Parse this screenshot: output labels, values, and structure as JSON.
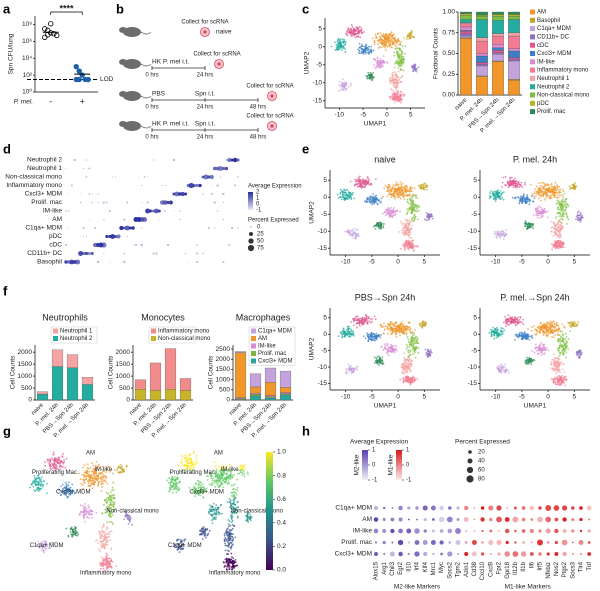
{
  "panel_labels": [
    "a",
    "b",
    "c",
    "d",
    "e",
    "f",
    "g",
    "h"
  ],
  "diagram": {
    "rows": [
      {
        "label": "naive",
        "collect": "Collect for scRNA"
      },
      {
        "treatment": "HK P. mel i.t.",
        "collect": "Collect for scRNA",
        "times": [
          "0 hrs",
          "24 hrs"
        ]
      },
      {
        "treatment": "PBS",
        "challenge": "Spn i.t.",
        "collect": "Collect for scRNA",
        "times": [
          "0 hrs",
          "24 hrs",
          "48 hrs"
        ]
      },
      {
        "treatment": "HK P. mel i.t.",
        "challenge": "Spn i.t.",
        "collect": "Collect for scRNA",
        "times": [
          "0 hrs",
          "24 hrs",
          "48 hrs"
        ]
      }
    ]
  },
  "chart_data": [
    {
      "type": "scatter",
      "ylabel": "Spn CFU/lung",
      "xlabel": "P. mel.",
      "categories": [
        "-",
        "+"
      ],
      "log_scale": true,
      "ylim": [
        1,
        1000000000
      ],
      "yticks": [
        {
          "value": 1,
          "label": "10⁰"
        },
        {
          "value": 100,
          "label": "10²"
        },
        {
          "value": 10000,
          "label": "10⁴"
        },
        {
          "value": 1000000,
          "label": "10⁶"
        },
        {
          "value": 100000000,
          "label": "10⁸"
        }
      ],
      "series": [
        {
          "color": "#000000",
          "values": [
            30000000,
            20000000,
            10000000,
            8000000,
            5000000,
            3000000,
            6000000,
            120000000
          ],
          "mean": 12000000
        },
        {
          "color": "#1f5fa8",
          "values": [
            1000,
            300,
            100,
            30,
            30,
            30,
            30
          ],
          "mean": 130
        }
      ],
      "reference_line": {
        "value": 30,
        "label": "LOD"
      },
      "annotation": "****"
    },
    {
      "type": "umap",
      "palette": "clusters",
      "xlabel": "UMAP1",
      "ylabel": "UMAP2",
      "xlim": [
        -13,
        8
      ],
      "ylim": [
        -17,
        8
      ],
      "xticks": [
        -10,
        -5,
        0,
        5
      ],
      "yticks": [
        -15,
        -10,
        -5,
        0,
        5
      ]
    },
    {
      "type": "stacked_bar",
      "ylabel": "Fractional Counts",
      "legend": "right",
      "categories": [
        "naive",
        "P. mel. 24h",
        "PBS→Spn 24h",
        "P. mel.→Spn 24h"
      ],
      "ylim": [
        0,
        1
      ],
      "yticks": [
        {
          "value": 0,
          "label": "0.00"
        },
        0.25,
        {
          "value": 0.5,
          "label": "0.50"
        },
        0.75,
        {
          "value": 1,
          "label": "1.00"
        }
      ],
      "series": [
        {
          "name": "AM",
          "color": "#f0962a",
          "values": [
            0.68,
            0.22,
            0.4,
            0.18
          ]
        },
        {
          "name": "Basophil",
          "color": "#c9a227",
          "values": [
            0.01,
            0.01,
            0.01,
            0.01
          ]
        },
        {
          "name": "C1qa+ MDM",
          "color": "#c4a3dd",
          "values": [
            0.02,
            0.12,
            0.08,
            0.22
          ]
        },
        {
          "name": "CD11b+ DC",
          "color": "#8e6fc2",
          "values": [
            0.03,
            0.02,
            0.02,
            0.02
          ]
        },
        {
          "name": "cDC",
          "color": "#e0568f",
          "values": [
            0.03,
            0.02,
            0.03,
            0.02
          ]
        },
        {
          "name": "Cxcl3+ MDM",
          "color": "#3c7fc4",
          "values": [
            0.01,
            0.08,
            0.03,
            0.08
          ]
        },
        {
          "name": "IM-like",
          "color": "#d98ad3",
          "values": [
            0.04,
            0.03,
            0.04,
            0.03
          ]
        },
        {
          "name": "Inflammatory mono",
          "color": "#f27d93",
          "values": [
            0.04,
            0.15,
            0.1,
            0.15
          ]
        },
        {
          "name": "Neutrophil 1",
          "color": "#f5a3a3",
          "values": [
            0.01,
            0.04,
            0.03,
            0.04
          ]
        },
        {
          "name": "Neutrophil 2",
          "color": "#22ada0",
          "values": [
            0.04,
            0.22,
            0.16,
            0.16
          ]
        },
        {
          "name": "Non-classical mono",
          "color": "#7fbf3f",
          "values": [
            0.05,
            0.04,
            0.05,
            0.04
          ]
        },
        {
          "name": "pDC",
          "color": "#b5b52a",
          "values": [
            0.02,
            0.01,
            0.02,
            0.02
          ]
        },
        {
          "name": "Prolif. mac",
          "color": "#2e8b57",
          "values": [
            0.02,
            0.04,
            0.03,
            0.03
          ]
        }
      ]
    },
    {
      "type": "dotplot",
      "rows": [
        "Neutrophil 2",
        "Neutrophil 1",
        "Non-classical mono",
        "Inflammatory mono",
        "Cxcl3+ MDM",
        "Prolif. mac",
        "IM-like",
        "AM",
        "C1qa+ MDM",
        "pDC",
        "cDC",
        "CD11b+ DC",
        "Basophil"
      ],
      "legend": {
        "color_title": "Average Expression",
        "color_lim": [
          -1,
          2
        ],
        "color_ticks": [
          2,
          1,
          0,
          -1
        ],
        "size_title": "Percent Expressed",
        "size_ticks": [
          0,
          25,
          50,
          75
        ]
      }
    },
    {
      "type": "umap",
      "palette": "clusters",
      "title": "naive",
      "ylabel": "UMAP2",
      "xlim": [
        -13,
        8
      ],
      "ylim": [
        -17,
        8
      ],
      "xticks": [
        -10,
        -5,
        0,
        5
      ],
      "yticks": [
        -15,
        -10,
        -5,
        0,
        5
      ]
    },
    {
      "type": "umap",
      "palette": "clusters",
      "title": "P. mel. 24h",
      "xlim": [
        -13,
        8
      ],
      "ylim": [
        -17,
        8
      ],
      "xticks": [
        -10,
        -5,
        0,
        5
      ],
      "yticks": [
        -15,
        -10,
        -5,
        0,
        5
      ]
    },
    {
      "type": "umap",
      "palette": "clusters",
      "title": "PBS→Spn 24h",
      "xlabel": "UMAP1",
      "ylabel": "UMAP2",
      "xlim": [
        -13,
        8
      ],
      "ylim": [
        -17,
        8
      ],
      "xticks": [
        -10,
        -5,
        0,
        5
      ],
      "yticks": [
        -15,
        -10,
        -5,
        0,
        5
      ]
    },
    {
      "type": "umap",
      "palette": "clusters",
      "title": "P. mel.→Spn 24h",
      "xlabel": "UMAP1",
      "xlim": [
        -13,
        8
      ],
      "ylim": [
        -17,
        8
      ],
      "xticks": [
        -10,
        -5,
        0,
        5
      ],
      "yticks": [
        -15,
        -10,
        -5,
        0,
        5
      ]
    },
    {
      "type": "stacked_bar",
      "title": "Neutrophils",
      "ylabel": "Cell Counts",
      "legend": "top",
      "stack_order": "reverse",
      "categories": [
        "naive",
        "P. mel. 24h",
        "PBS→Spn 24h",
        "P. mel.→Spn 24h"
      ],
      "ylim": [
        0,
        2300
      ],
      "yticks": [
        0,
        500,
        1000,
        1500,
        2000
      ],
      "series": [
        {
          "name": "Neutrophil 1",
          "color": "#f5a3a3",
          "values": [
            100,
            700,
            550,
            300
          ]
        },
        {
          "name": "Neutrophil 2",
          "color": "#22ada0",
          "values": [
            250,
            1400,
            1350,
            650
          ]
        }
      ]
    },
    {
      "type": "stacked_bar",
      "title": "Monocytes",
      "ylabel": "Cell Counts",
      "legend": "top",
      "stack_order": "reverse",
      "categories": [
        "naive",
        "P. mel. 24h",
        "PBS→Spn 24h",
        "P. mel.→Spn 24h"
      ],
      "ylim": [
        0,
        2300
      ],
      "yticks": [
        0,
        500,
        1000,
        1500,
        2000
      ],
      "series": [
        {
          "name": "Inflammatory mono",
          "color": "#f28b8b",
          "values": [
            400,
            1150,
            1700,
            500
          ]
        },
        {
          "name": "Non-classical mono",
          "color": "#c8b428",
          "values": [
            450,
            400,
            450,
            400
          ]
        }
      ]
    },
    {
      "type": "stacked_bar",
      "title": "Macrophages",
      "ylabel": "Cell Counts",
      "legend": "top",
      "stack_order": "reverse",
      "categories": [
        "naive",
        "P. mel. 24h",
        "PBS→Spn 24h",
        "P. mel.→Spn 24h"
      ],
      "ylim": [
        0,
        2700
      ],
      "yticks": [
        0,
        500,
        1000,
        1500,
        2000,
        2500
      ],
      "series": [
        {
          "name": "C1qa+ MDM",
          "color": "#c4a3dd",
          "values": [
            60,
            650,
            700,
            800
          ]
        },
        {
          "name": "AM",
          "color": "#f0962a",
          "values": [
            2200,
            300,
            650,
            250
          ]
        },
        {
          "name": "IM-like",
          "color": "#d98ad3",
          "values": [
            60,
            60,
            60,
            60
          ]
        },
        {
          "name": "Prolif. mac",
          "color": "#7cb342",
          "values": [
            40,
            80,
            60,
            60
          ]
        },
        {
          "name": "Cxcl3+ MDM",
          "color": "#2aa5a0",
          "values": [
            20,
            200,
            100,
            250
          ]
        }
      ]
    },
    {
      "type": "umap",
      "palette": "clusters",
      "labels": [
        "Proliferating Mac",
        "AM",
        "IM-like",
        "Cxcl3+ MDM",
        "Non-classical mono",
        "C1qa+ MDM",
        "Inflammatory mono"
      ]
    },
    {
      "type": "umap",
      "palette": "viridis",
      "labels": [
        "Proliferating Mac",
        "AM",
        "IM-like",
        "Cxcl3+ MDM",
        "Non-classical mono",
        "C1qa+ MDM",
        "Inflammatory mono"
      ],
      "colorbar": {
        "lim": [
          0,
          1
        ],
        "ticks": [
          {
            "value": 0,
            "label": "0.0"
          },
          0.2,
          0.4,
          0.6,
          0.8,
          {
            "value": 1,
            "label": "1.0"
          }
        ]
      }
    },
    {
      "type": "dotplot",
      "rows": [
        "C1qa+ MDM",
        "AM",
        "IM-like",
        "Prolif. mac",
        "Cxcl3+ MDM"
      ],
      "groups": [
        {
          "label": "M2-like Markers",
          "genes": [
            "Alox15",
            "Arg1",
            "Chil3",
            "Egr2",
            "Il10",
            "Irf4",
            "Klf4",
            "Mrc1",
            "Myc",
            "Socs2",
            "Tgm2"
          ]
        },
        {
          "label": "M1-like Markers",
          "genes": [
            "Azin1",
            "Cd38",
            "Cxcl10",
            "Cxcl9",
            "Fpr2",
            "Gpr18",
            "Il12b",
            "Il1b",
            "Il6",
            "Irf5",
            "Nfkbiz",
            "Nos2",
            "Ptgs2",
            "Socs3",
            "Tlr4",
            "Tnf"
          ]
        }
      ],
      "legend": {
        "color_title": "Average Expression",
        "color_bars": [
          "M2-like",
          "M1-like"
        ],
        "color_lim": [
          -1,
          1
        ],
        "color_ticks": [
          1,
          0,
          -1
        ],
        "size_title": "Percent Expressed",
        "size_ticks": [
          20,
          40,
          60,
          80
        ]
      }
    }
  ]
}
